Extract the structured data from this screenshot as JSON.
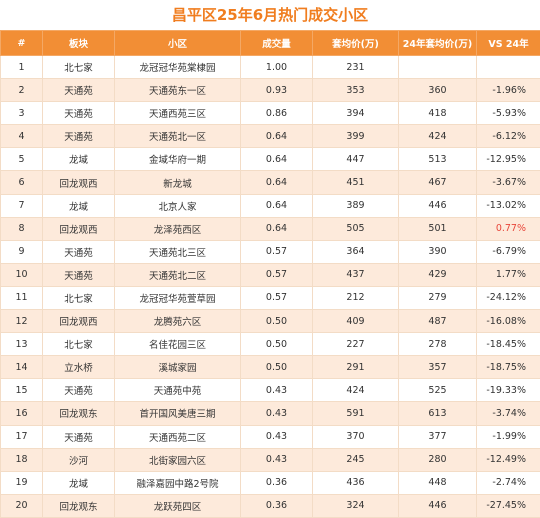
{
  "title": "昌平区25年6月热门成交小区",
  "headers": [
    "#",
    "板块",
    "小区",
    "成交量",
    "套均价(万)",
    "24年套均价(万)",
    "VS 24年"
  ],
  "rows": [
    [
      "1",
      "北七家",
      "龙冠冠华苑棠棣园",
      "1.00",
      "231",
      "",
      ""
    ],
    [
      "2",
      "天通苑",
      "天通苑东一区",
      "0.93",
      "353",
      "360",
      "-1.96%"
    ],
    [
      "3",
      "天通苑",
      "天通西苑三区",
      "0.86",
      "394",
      "418",
      "-5.93%"
    ],
    [
      "4",
      "天通苑",
      "天通苑北一区",
      "0.64",
      "399",
      "424",
      "-6.12%"
    ],
    [
      "5",
      "龙域",
      "金域华府一期",
      "0.64",
      "447",
      "513",
      "-12.95%"
    ],
    [
      "6",
      "回龙观西",
      "新龙城",
      "0.64",
      "451",
      "467",
      "-3.67%"
    ],
    [
      "7",
      "龙域",
      "北京人家",
      "0.64",
      "389",
      "446",
      "-13.02%"
    ],
    [
      "8",
      "回龙观西",
      "龙泽苑西区",
      "0.64",
      "505",
      "501",
      "0.77%"
    ],
    [
      "9",
      "天通苑",
      "天通苑北三区",
      "0.57",
      "364",
      "390",
      "-6.79%"
    ],
    [
      "10",
      "天通苑",
      "天通苑北二区",
      "0.57",
      "437",
      "429",
      "1.77%"
    ],
    [
      "11",
      "北七家",
      "龙冠冠华苑萱草园",
      "0.57",
      "212",
      "279",
      "-24.12%"
    ],
    [
      "12",
      "回龙观西",
      "龙腾苑六区",
      "0.50",
      "409",
      "487",
      "-16.08%"
    ],
    [
      "13",
      "北七家",
      "名佳花园三区",
      "0.50",
      "227",
      "278",
      "-18.45%"
    ],
    [
      "14",
      "立水桥",
      "溪城家园",
      "0.50",
      "291",
      "357",
      "-18.75%"
    ],
    [
      "15",
      "天通苑",
      "天通苑中苑",
      "0.43",
      "424",
      "525",
      "-19.33%"
    ],
    [
      "16",
      "回龙观东",
      "首开国风美唐三期",
      "0.43",
      "591",
      "613",
      "-3.74%"
    ],
    [
      "17",
      "天通苑",
      "天通西苑二区",
      "0.43",
      "370",
      "377",
      "-1.99%"
    ],
    [
      "18",
      "沙河",
      "北街家园六区",
      "0.43",
      "245",
      "280",
      "-12.49%"
    ],
    [
      "19",
      "龙域",
      "融泽嘉园中路2号院",
      "0.36",
      "436",
      "448",
      "-2.74%"
    ],
    [
      "20",
      "回龙观东",
      "龙跃苑四区",
      "0.36",
      "324",
      "446",
      "-27.45%"
    ]
  ],
  "highlight_row_index": 7,
  "colors": {
    "title": "#f07d1f",
    "header_bg": "#f28e35",
    "stripe": "#fdeadb",
    "highlight_text": "#e8463a"
  }
}
